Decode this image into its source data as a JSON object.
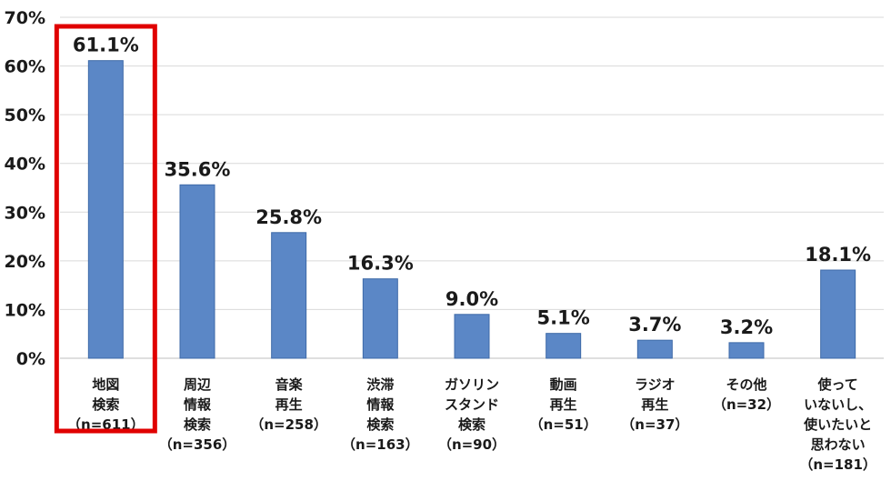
{
  "chart_data": {
    "type": "bar",
    "categories": [
      [
        "地図",
        "検索",
        "（n=611）"
      ],
      [
        "周辺",
        "情報",
        "検索",
        "（n=356）"
      ],
      [
        "音楽",
        "再生",
        "（n=258）"
      ],
      [
        "渋滞",
        "情報",
        "検索",
        "（n=163）"
      ],
      [
        "ガソリン",
        "スタンド",
        "検索",
        "（n=90）"
      ],
      [
        "動画",
        "再生",
        "（n=51）"
      ],
      [
        "ラジオ",
        "再生",
        "（n=37）"
      ],
      [
        "その他",
        "（n=32）"
      ],
      [
        "使って",
        "いないし、",
        "使いたいと",
        "思わない",
        "（n=181）"
      ]
    ],
    "values": [
      61.1,
      35.6,
      25.8,
      16.3,
      9.0,
      5.1,
      3.7,
      3.2,
      18.1
    ],
    "data_labels": [
      "61.1%",
      "35.6%",
      "25.8%",
      "16.3%",
      "9.0%",
      "5.1%",
      "3.7%",
      "3.2%",
      "18.1%"
    ],
    "y_ticks": [
      "0%",
      "10%",
      "20%",
      "30%",
      "40%",
      "50%",
      "60%",
      "70%"
    ],
    "ylim": [
      0,
      70
    ],
    "grid": true,
    "highlight_index": 0,
    "colors": {
      "bar": "#5b87c6",
      "bar_edge": "#3e6aa8",
      "grid": "#d9d9d9",
      "highlight_box": "#e00000"
    }
  }
}
